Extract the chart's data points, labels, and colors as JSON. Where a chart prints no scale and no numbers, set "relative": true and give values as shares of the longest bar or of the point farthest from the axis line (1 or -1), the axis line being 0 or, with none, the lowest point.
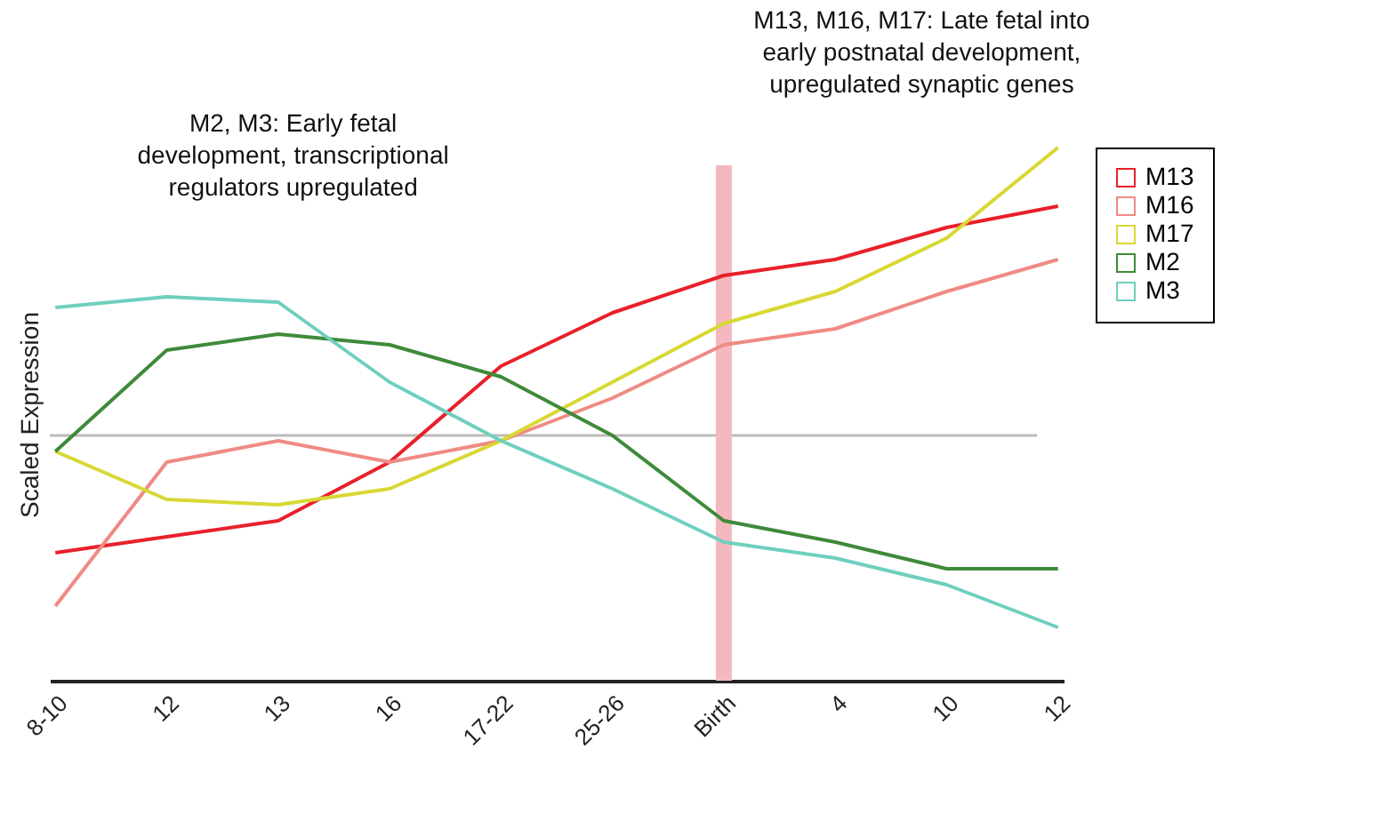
{
  "chart_data": {
    "type": "line",
    "relative": true,
    "ylabel": "Scaled Expression",
    "categories": [
      "8-10",
      "12",
      "13",
      "16",
      "17-22",
      "25-26",
      "Birth",
      "4",
      "10",
      "12"
    ],
    "series": [
      {
        "name": "M13",
        "color": "#e8202a",
        "values": [
          0.24,
          0.27,
          0.3,
          0.41,
          0.59,
          0.69,
          0.76,
          0.79,
          0.85,
          0.89
        ]
      },
      {
        "name": "M16",
        "color": "#f08a84",
        "values": [
          0.14,
          0.41,
          0.45,
          0.41,
          0.45,
          0.53,
          0.63,
          0.66,
          0.73,
          0.79
        ]
      },
      {
        "name": "M17",
        "color": "#d8d834",
        "values": [
          0.43,
          0.34,
          0.33,
          0.36,
          0.45,
          0.56,
          0.67,
          0.73,
          0.83,
          1
        ]
      },
      {
        "name": "M2",
        "color": "#3f8a3a",
        "values": [
          0.43,
          0.62,
          0.65,
          0.63,
          0.57,
          0.46,
          0.3,
          0.26,
          0.21,
          0.21
        ]
      },
      {
        "name": "M3",
        "color": "#6fcfbf",
        "values": [
          0.7,
          0.72,
          0.71,
          0.56,
          0.45,
          0.36,
          0.26,
          0.23,
          0.18,
          0.1
        ]
      }
    ],
    "ref_lines": [
      {
        "axis": "y",
        "value": 0.46,
        "color": "#bbbbbb"
      },
      {
        "axis": "x",
        "value": "Birth",
        "color": "#f4b8be"
      }
    ],
    "annotations": [
      "M2, M3: Early fetal\ndevelopment, transcriptional\nregulators upregulated",
      "M13, M16, M17: Late fetal into\nearly postnatal development,\nupregulated synaptic genes"
    ],
    "legend": "right",
    "grid": false
  }
}
